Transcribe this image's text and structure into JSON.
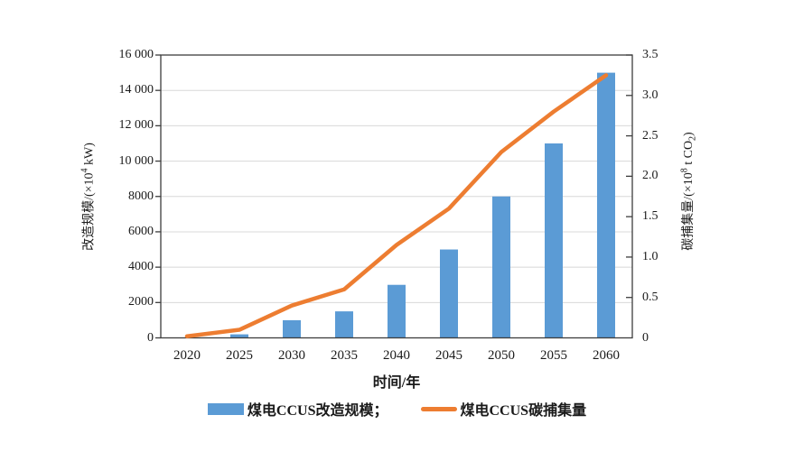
{
  "chart_data": {
    "type": "bar",
    "subtype": "bar+line dual axis",
    "categories": [
      "2020",
      "2025",
      "2030",
      "2035",
      "2040",
      "2045",
      "2050",
      "2055",
      "2060"
    ],
    "series": [
      {
        "name": "煤电CCUS改造规模",
        "type": "bar",
        "axis": "left",
        "color": "#5B9BD5",
        "values": [
          0,
          200,
          1000,
          1500,
          3000,
          5000,
          8000,
          11000,
          15000
        ]
      },
      {
        "name": "煤电CCUS碳捕集量",
        "type": "line",
        "axis": "right",
        "color": "#ED7D31",
        "values": [
          0.02,
          0.1,
          0.4,
          0.6,
          1.15,
          1.6,
          2.3,
          2.8,
          3.25
        ]
      }
    ],
    "left_axis": {
      "title_prefix": "改造规模/(×10",
      "title_sup": "4",
      "title_suffix": " kW)",
      "min": 0,
      "max": 16000,
      "step": 2000,
      "tick_labels": [
        "0",
        "2000",
        "4000",
        "6000",
        "8000",
        "10 000",
        "12 000",
        "14 000",
        "16 000"
      ]
    },
    "right_axis": {
      "title_prefix": "碳捕集量/(×10",
      "title_sup": "8",
      "title_mid": " t CO",
      "title_sub": "2",
      "title_suffix": ")",
      "min": 0,
      "max": 3.5,
      "step": 0.5,
      "tick_labels": [
        "0",
        "0.5",
        "1.0",
        "1.5",
        "2.0",
        "2.5",
        "3.0",
        "3.5"
      ]
    },
    "x_axis": {
      "title": "时间/年"
    },
    "legend": [
      {
        "label": "煤电CCUS改造规模；",
        "swatch": "bar"
      },
      {
        "label": "煤电CCUS碳捕集量",
        "swatch": "line"
      }
    ],
    "grid": "horizontal",
    "legend_position": "bottom",
    "colors": {
      "bar": "#5B9BD5",
      "line": "#ED7D31",
      "grid": "#D8D8D8",
      "axis": "#3D3D3D",
      "text": "#1A1A1A",
      "background": "#FFFFFF"
    }
  }
}
